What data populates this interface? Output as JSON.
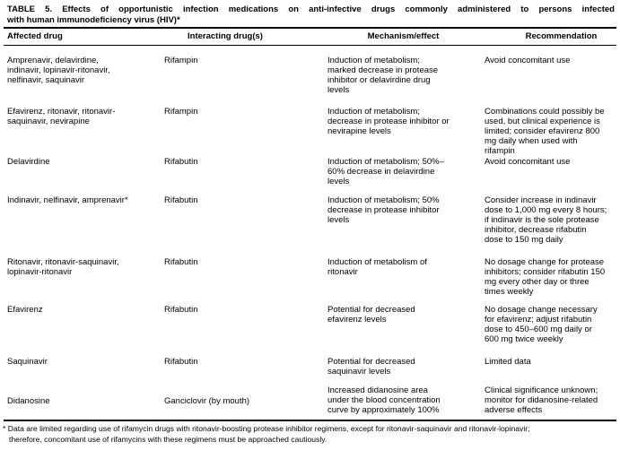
{
  "page": {
    "title_line1": "TABLE 5. Effects of opportunistic infection medications on anti-infective drugs commonly administered to persons infected",
    "title_line2": "with human immunodeficiency virus (HIV)*"
  },
  "table": {
    "columns": [
      "Affected drug",
      "Interacting drug(s)",
      "Mechanism/effect",
      "Recommendation"
    ],
    "rows": [
      {
        "affected_drug": "Amprenavir, delavirdine,\nindinavir, lopinavir-ritonavir,\nnelfinavir, saquinavir",
        "interacting_drugs": "Rifampin",
        "mechanism_effect": "Induction of metabolism;\nmarked decrease in protease\ninhibitor or delavirdine drug\nlevels",
        "recommendation": "Avoid concomitant use"
      },
      {
        "affected_drug": "Efavirenz, ritonavir, ritonavir-\nsaquinavir, nevirapine",
        "interacting_drugs": "Rifampin",
        "mechanism_effect": "Induction of metabolism;\ndecrease in protease inhibitor or\nnevirapine levels",
        "recommendation": "Combinations could possibly be\nused, but clinical experience is\nlimited; consider efavirenz 800\nmg daily when used with\nrifampin"
      },
      {
        "affected_drug": "Delavirdine",
        "interacting_drugs": "Rifabutin",
        "mechanism_effect": "Induction of metabolism; 50%–\n60% decrease in delavirdine\nlevels",
        "recommendation": "Avoid concomitant use"
      },
      {
        "affected_drug": "Indinavir, nelfinavir, amprenavir*",
        "interacting_drugs": "Rifabutin",
        "mechanism_effect": "Induction of metabolism; 50%\ndecrease in protease inhibitor\nlevels",
        "recommendation": "Consider increase in indinavir\ndose to 1,000 mg every 8 hours;\nif indinavir is the sole protease\ninhibitor, decrease rifabutin\ndose to 150 mg daily"
      },
      {
        "affected_drug": "Ritonavir, ritonavir-saquinavir,\nlopinavir-ritonavir",
        "interacting_drugs": "Rifabutin",
        "mechanism_effect": "Induction of metabolism of\nritonavir",
        "recommendation": "No dosage change for protease\ninhibitors; consider rifabutin 150\nmg every other day or three\ntimes weekly"
      },
      {
        "affected_drug": "Efavirenz",
        "interacting_drugs": "Rifabutin",
        "mechanism_effect": "Potential for decreased\nefavirenz levels",
        "recommendation": "No dosage change necessary\nfor efavirenz; adjust rifabutin\ndose to 450–600 mg daily or\n600 mg twice weekly"
      },
      {
        "affected_drug": "Saquinavir",
        "interacting_drugs": "Rifabutin",
        "mechanism_effect": "Potential for decreased\nsaquinavir levels",
        "recommendation": "Limited data"
      },
      {
        "affected_drug": "Didanosine",
        "interacting_drugs": "Ganciclovir (by mouth)",
        "mechanism_effect": "Increased didanosine area\nunder the blood concentration\ncurve by approximately 100%",
        "recommendation": "Clinical significance unknown;\nmonitor for didanosine-related\nadverse effects"
      }
    ]
  },
  "footnote": "* Data are limited regarding use of rifamycin drugs with ritonavir-boosting protease inhibitor regimens, except for ritonavir-saquinavir and ritonavir-lopinavir;\ntherefore, concomitant use of rifamycins with these regimens must be approached cautiously."
}
